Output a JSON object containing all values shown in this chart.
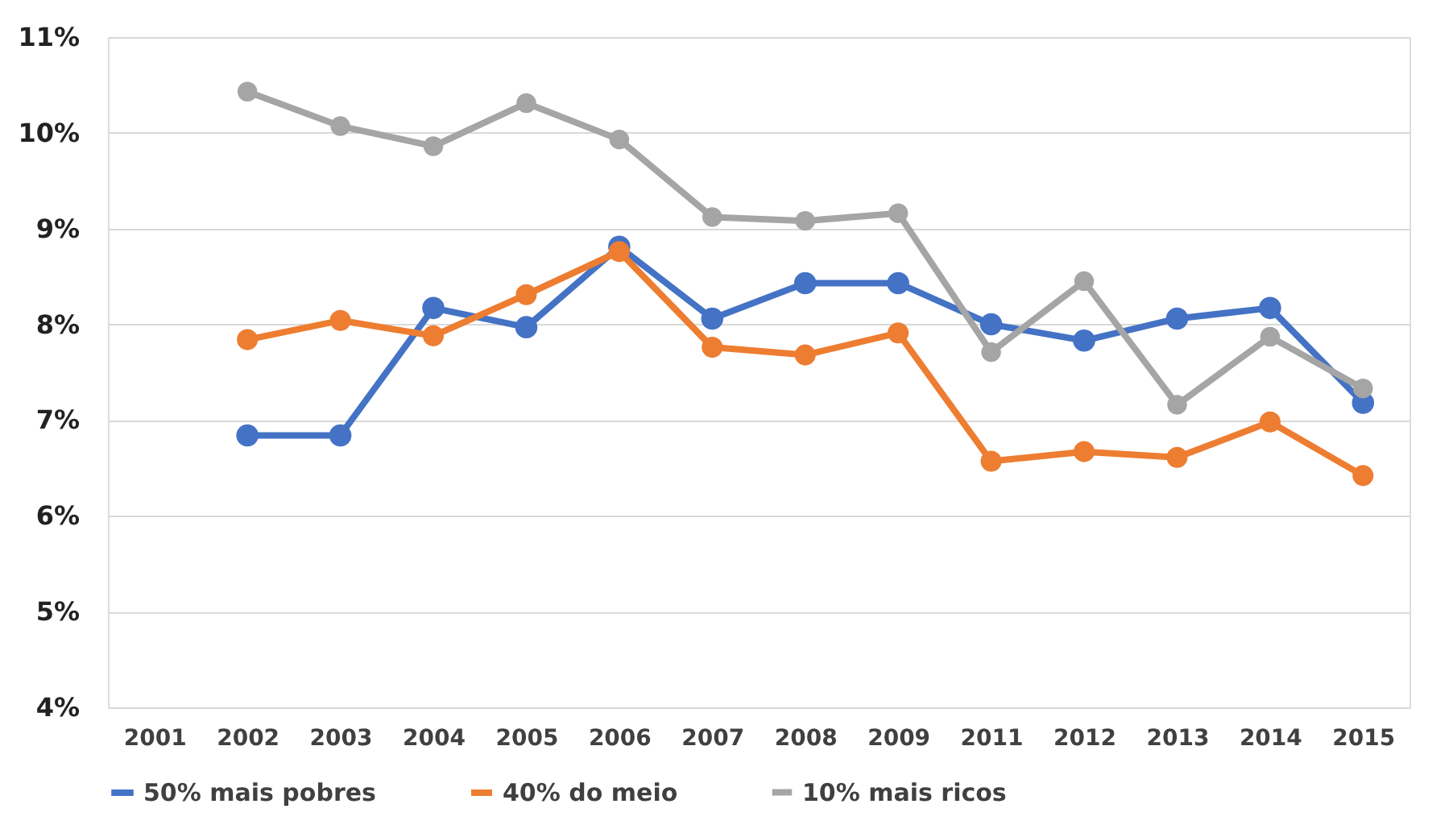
{
  "chart_data": {
    "type": "line",
    "categories": [
      "2001",
      "2002",
      "2003",
      "2004",
      "2005",
      "2006",
      "2007",
      "2008",
      "2009",
      "2011",
      "2012",
      "2013",
      "2014",
      "2015"
    ],
    "series": [
      {
        "name": "50% mais pobres",
        "color": "#4472c4",
        "values": [
          null,
          6.84,
          6.84,
          8.17,
          7.97,
          8.81,
          8.06,
          8.43,
          8.43,
          8.0,
          7.83,
          8.06,
          8.17,
          7.18
        ]
      },
      {
        "name": "40% do meio",
        "color": "#ed7d31",
        "values": [
          null,
          7.84,
          8.04,
          7.88,
          8.31,
          8.76,
          7.76,
          7.68,
          7.91,
          6.57,
          6.67,
          6.61,
          6.98,
          6.42
        ]
      },
      {
        "name": "10% mais ricos",
        "color": "#a5a5a5",
        "values": [
          null,
          10.43,
          10.07,
          9.86,
          10.31,
          9.93,
          9.12,
          9.08,
          9.16,
          7.71,
          8.45,
          7.16,
          7.87,
          7.33
        ]
      }
    ],
    "ylim": [
      4,
      11
    ],
    "yticks": [
      {
        "value": 4,
        "label": "4%"
      },
      {
        "value": 5,
        "label": "5%"
      },
      {
        "value": 6,
        "label": "6%"
      },
      {
        "value": 7,
        "label": "7%"
      },
      {
        "value": 8,
        "label": "8%"
      },
      {
        "value": 9,
        "label": "9%"
      },
      {
        "value": 10,
        "label": "10%"
      },
      {
        "value": 11,
        "label": "11%"
      }
    ],
    "grid": "y",
    "legend": "bottom",
    "marker": "circle",
    "line_style": "solid"
  }
}
